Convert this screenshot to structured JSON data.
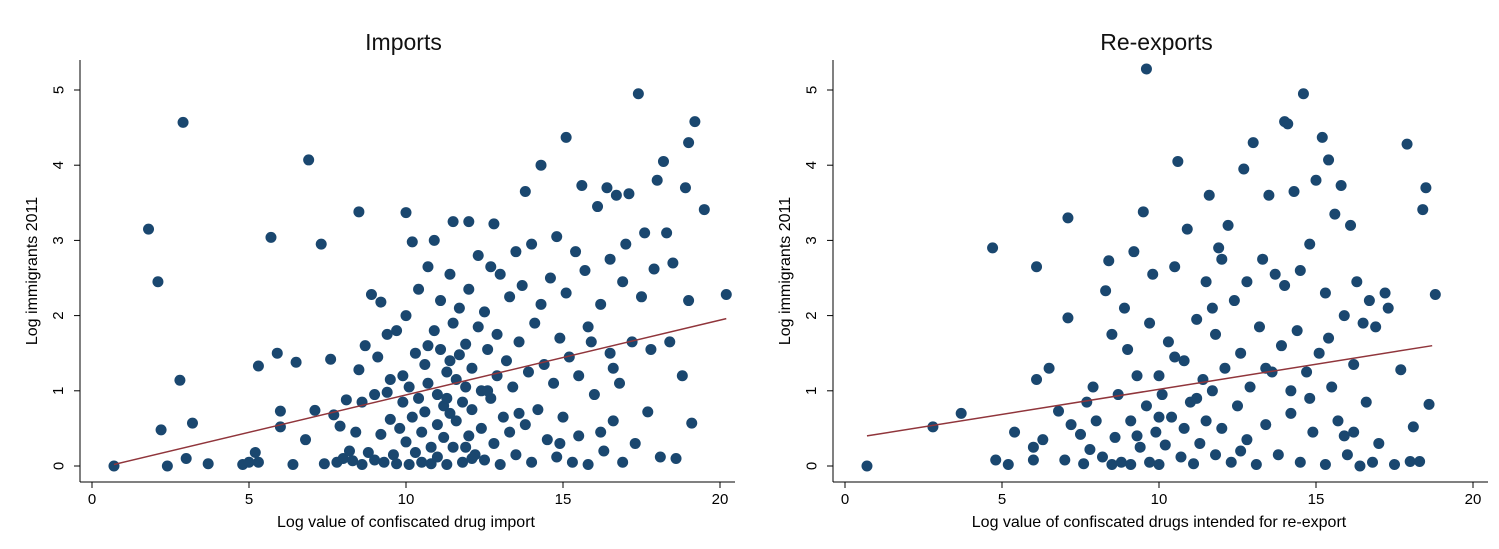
{
  "chart_data": [
    {
      "type": "scatter",
      "title": "Imports",
      "xlabel": "Log value of confiscated drug import",
      "ylabel": "Log immigrants 2011",
      "xlim": [
        0,
        20.5
      ],
      "ylim": [
        0,
        5.5
      ],
      "xticks": [
        0,
        5,
        10,
        15,
        20
      ],
      "yticks": [
        0,
        1,
        2,
        3,
        4,
        5
      ],
      "grid": false,
      "marker_color": "#1a476f",
      "fit_color": "#90353b",
      "fit_line": {
        "x": [
          0.7,
          20.2
        ],
        "y": [
          0.02,
          1.96
        ]
      },
      "points": [
        [
          0.7,
          0.0
        ],
        [
          1.8,
          3.15
        ],
        [
          2.1,
          2.45
        ],
        [
          2.2,
          0.48
        ],
        [
          2.4,
          0.0
        ],
        [
          2.8,
          1.14
        ],
        [
          2.9,
          4.57
        ],
        [
          3.0,
          0.1
        ],
        [
          3.2,
          0.57
        ],
        [
          3.7,
          0.03
        ],
        [
          4.8,
          0.02
        ],
        [
          5.0,
          0.05
        ],
        [
          5.2,
          0.18
        ],
        [
          5.3,
          1.33
        ],
        [
          5.3,
          0.05
        ],
        [
          5.7,
          3.04
        ],
        [
          5.9,
          1.5
        ],
        [
          6.0,
          0.73
        ],
        [
          6.0,
          0.52
        ],
        [
          6.4,
          0.02
        ],
        [
          6.5,
          1.38
        ],
        [
          6.8,
          0.35
        ],
        [
          6.9,
          4.07
        ],
        [
          7.1,
          0.74
        ],
        [
          7.3,
          2.95
        ],
        [
          7.4,
          0.03
        ],
        [
          7.6,
          1.42
        ],
        [
          7.7,
          0.68
        ],
        [
          7.8,
          0.05
        ],
        [
          7.9,
          0.53
        ],
        [
          8.0,
          0.1
        ],
        [
          8.1,
          0.88
        ],
        [
          8.2,
          0.2
        ],
        [
          8.3,
          0.07
        ],
        [
          8.4,
          0.45
        ],
        [
          8.5,
          1.28
        ],
        [
          8.5,
          3.38
        ],
        [
          8.6,
          0.85
        ],
        [
          8.6,
          0.02
        ],
        [
          8.7,
          1.6
        ],
        [
          8.8,
          0.18
        ],
        [
          8.9,
          2.28
        ],
        [
          9.0,
          0.95
        ],
        [
          9.0,
          0.08
        ],
        [
          9.1,
          1.45
        ],
        [
          9.2,
          0.42
        ],
        [
          9.2,
          2.18
        ],
        [
          9.3,
          0.05
        ],
        [
          9.4,
          0.98
        ],
        [
          9.5,
          1.15
        ],
        [
          9.5,
          0.62
        ],
        [
          9.6,
          0.15
        ],
        [
          9.7,
          1.8
        ],
        [
          9.7,
          0.03
        ],
        [
          9.8,
          0.5
        ],
        [
          9.9,
          1.2
        ],
        [
          9.9,
          0.85
        ],
        [
          10.0,
          3.37
        ],
        [
          10.0,
          2.0
        ],
        [
          10.0,
          0.32
        ],
        [
          10.1,
          1.05
        ],
        [
          10.1,
          0.02
        ],
        [
          10.2,
          2.98
        ],
        [
          10.2,
          0.65
        ],
        [
          10.3,
          1.5
        ],
        [
          10.3,
          0.18
        ],
        [
          10.4,
          2.35
        ],
        [
          10.4,
          0.9
        ],
        [
          10.5,
          0.45
        ],
        [
          10.5,
          0.05
        ],
        [
          10.6,
          1.35
        ],
        [
          10.6,
          0.72
        ],
        [
          10.7,
          2.65
        ],
        [
          10.7,
          1.1
        ],
        [
          10.8,
          0.25
        ],
        [
          10.8,
          0.03
        ],
        [
          10.9,
          3.0
        ],
        [
          10.9,
          1.8
        ],
        [
          11.0,
          0.95
        ],
        [
          11.0,
          0.55
        ],
        [
          11.0,
          0.12
        ],
        [
          11.1,
          2.2
        ],
        [
          11.1,
          1.55
        ],
        [
          11.2,
          0.8
        ],
        [
          11.2,
          0.38
        ],
        [
          11.3,
          1.25
        ],
        [
          11.3,
          0.02
        ],
        [
          11.4,
          2.55
        ],
        [
          11.4,
          1.4
        ],
        [
          11.4,
          0.7
        ],
        [
          11.5,
          3.25
        ],
        [
          11.5,
          1.9
        ],
        [
          11.5,
          0.25
        ],
        [
          11.6,
          1.15
        ],
        [
          11.6,
          0.6
        ],
        [
          11.7,
          2.1
        ],
        [
          11.7,
          1.48
        ],
        [
          11.8,
          0.85
        ],
        [
          11.8,
          0.05
        ],
        [
          11.9,
          1.62
        ],
        [
          11.9,
          1.05
        ],
        [
          12.0,
          3.25
        ],
        [
          12.0,
          2.35
        ],
        [
          12.0,
          0.4
        ],
        [
          12.1,
          1.3
        ],
        [
          12.1,
          0.75
        ],
        [
          12.2,
          0.15
        ],
        [
          12.3,
          2.8
        ],
        [
          12.3,
          1.85
        ],
        [
          12.4,
          1.0
        ],
        [
          12.4,
          0.5
        ],
        [
          12.5,
          2.05
        ],
        [
          12.5,
          0.08
        ],
        [
          12.6,
          1.55
        ],
        [
          12.7,
          2.65
        ],
        [
          12.7,
          0.9
        ],
        [
          12.8,
          3.22
        ],
        [
          12.8,
          0.3
        ],
        [
          12.9,
          1.75
        ],
        [
          12.9,
          1.2
        ],
        [
          13.0,
          2.55
        ],
        [
          13.0,
          0.02
        ],
        [
          13.1,
          0.65
        ],
        [
          13.2,
          1.4
        ],
        [
          13.3,
          2.25
        ],
        [
          13.3,
          0.45
        ],
        [
          13.4,
          1.05
        ],
        [
          13.5,
          2.85
        ],
        [
          13.5,
          0.15
        ],
        [
          13.6,
          1.65
        ],
        [
          13.7,
          2.4
        ],
        [
          13.8,
          0.55
        ],
        [
          13.8,
          3.65
        ],
        [
          13.9,
          1.25
        ],
        [
          14.0,
          2.95
        ],
        [
          14.0,
          0.05
        ],
        [
          14.1,
          1.9
        ],
        [
          14.2,
          0.75
        ],
        [
          14.3,
          4.0
        ],
        [
          14.3,
          2.15
        ],
        [
          14.4,
          1.35
        ],
        [
          14.5,
          0.35
        ],
        [
          14.6,
          2.5
        ],
        [
          14.7,
          1.1
        ],
        [
          14.8,
          3.05
        ],
        [
          14.8,
          0.12
        ],
        [
          14.9,
          1.7
        ],
        [
          15.0,
          0.65
        ],
        [
          15.1,
          4.37
        ],
        [
          15.1,
          2.3
        ],
        [
          15.2,
          1.45
        ],
        [
          15.3,
          0.05
        ],
        [
          15.4,
          2.85
        ],
        [
          15.5,
          1.2
        ],
        [
          15.5,
          0.4
        ],
        [
          15.6,
          3.73
        ],
        [
          15.7,
          2.6
        ],
        [
          15.8,
          1.85
        ],
        [
          15.8,
          0.02
        ],
        [
          16.0,
          0.95
        ],
        [
          16.1,
          3.45
        ],
        [
          16.2,
          2.15
        ],
        [
          16.3,
          0.2
        ],
        [
          16.4,
          3.7
        ],
        [
          16.5,
          1.5
        ],
        [
          16.5,
          2.75
        ],
        [
          16.6,
          0.6
        ],
        [
          16.7,
          3.6
        ],
        [
          16.8,
          1.1
        ],
        [
          16.9,
          2.45
        ],
        [
          16.9,
          0.05
        ],
        [
          17.0,
          2.95
        ],
        [
          17.1,
          3.62
        ],
        [
          17.2,
          1.65
        ],
        [
          17.3,
          0.3
        ],
        [
          17.4,
          4.95
        ],
        [
          17.5,
          2.25
        ],
        [
          17.6,
          3.1
        ],
        [
          17.7,
          0.72
        ],
        [
          17.8,
          1.55
        ],
        [
          17.9,
          2.62
        ],
        [
          18.0,
          3.8
        ],
        [
          18.1,
          0.12
        ],
        [
          18.2,
          4.05
        ],
        [
          18.3,
          3.1
        ],
        [
          18.4,
          1.65
        ],
        [
          18.5,
          2.7
        ],
        [
          18.6,
          0.1
        ],
        [
          18.8,
          1.2
        ],
        [
          18.9,
          3.7
        ],
        [
          19.0,
          2.2
        ],
        [
          19.0,
          4.3
        ],
        [
          19.1,
          0.57
        ],
        [
          19.2,
          4.58
        ],
        [
          19.5,
          3.41
        ],
        [
          20.2,
          2.28
        ],
        [
          16.2,
          0.45
        ],
        [
          15.9,
          1.65
        ],
        [
          16.6,
          1.3
        ],
        [
          14.9,
          0.3
        ],
        [
          12.1,
          0.1
        ],
        [
          11.3,
          0.9
        ],
        [
          10.7,
          1.6
        ],
        [
          9.4,
          1.75
        ],
        [
          13.6,
          0.7
        ],
        [
          12.6,
          1.0
        ],
        [
          11.9,
          0.25
        ]
      ]
    },
    {
      "type": "scatter",
      "title": "Re-exports",
      "xlabel": "Log value of confiscated drugs intended for re-export",
      "ylabel": "Log immigrants 2011",
      "xlim": [
        0,
        20.5
      ],
      "ylim": [
        0,
        5.5
      ],
      "xticks": [
        0,
        5,
        10,
        15,
        20
      ],
      "yticks": [
        0,
        1,
        2,
        3,
        4,
        5
      ],
      "grid": false,
      "marker_color": "#1a476f",
      "fit_color": "#90353b",
      "fit_line": {
        "x": [
          0.7,
          18.7
        ],
        "y": [
          0.4,
          1.6
        ]
      },
      "points": [
        [
          0.7,
          0.0
        ],
        [
          2.8,
          0.52
        ],
        [
          3.7,
          0.7
        ],
        [
          4.7,
          2.9
        ],
        [
          4.8,
          0.08
        ],
        [
          5.2,
          0.02
        ],
        [
          5.4,
          0.45
        ],
        [
          6.0,
          0.08
        ],
        [
          6.0,
          0.25
        ],
        [
          6.1,
          2.65
        ],
        [
          6.1,
          1.15
        ],
        [
          6.3,
          0.35
        ],
        [
          6.5,
          1.3
        ],
        [
          6.8,
          0.73
        ],
        [
          7.0,
          0.08
        ],
        [
          7.1,
          3.3
        ],
        [
          7.1,
          1.97
        ],
        [
          7.2,
          0.55
        ],
        [
          7.5,
          0.42
        ],
        [
          7.6,
          0.03
        ],
        [
          7.7,
          0.85
        ],
        [
          7.8,
          0.22
        ],
        [
          7.9,
          1.05
        ],
        [
          8.0,
          0.6
        ],
        [
          8.2,
          0.12
        ],
        [
          8.3,
          2.33
        ],
        [
          8.4,
          2.73
        ],
        [
          8.5,
          0.02
        ],
        [
          8.5,
          1.75
        ],
        [
          8.6,
          0.38
        ],
        [
          8.7,
          0.95
        ],
        [
          8.8,
          0.05
        ],
        [
          8.9,
          2.1
        ],
        [
          9.0,
          1.55
        ],
        [
          9.1,
          0.6
        ],
        [
          9.1,
          0.02
        ],
        [
          9.2,
          2.85
        ],
        [
          9.3,
          1.2
        ],
        [
          9.4,
          0.25
        ],
        [
          9.5,
          3.38
        ],
        [
          9.6,
          0.8
        ],
        [
          9.6,
          5.28
        ],
        [
          9.7,
          1.9
        ],
        [
          9.7,
          0.05
        ],
        [
          9.8,
          2.55
        ],
        [
          9.9,
          0.45
        ],
        [
          10.0,
          1.2
        ],
        [
          10.0,
          0.02
        ],
        [
          10.1,
          0.95
        ],
        [
          10.2,
          0.28
        ],
        [
          10.3,
          1.65
        ],
        [
          10.4,
          0.65
        ],
        [
          10.5,
          2.65
        ],
        [
          10.6,
          4.05
        ],
        [
          10.7,
          0.12
        ],
        [
          10.8,
          1.4
        ],
        [
          10.8,
          0.5
        ],
        [
          10.9,
          3.15
        ],
        [
          11.0,
          0.85
        ],
        [
          11.1,
          0.03
        ],
        [
          11.2,
          1.95
        ],
        [
          11.3,
          0.3
        ],
        [
          11.4,
          1.15
        ],
        [
          11.5,
          2.45
        ],
        [
          11.5,
          0.6
        ],
        [
          11.6,
          3.6
        ],
        [
          11.7,
          1.0
        ],
        [
          11.8,
          0.15
        ],
        [
          11.8,
          1.75
        ],
        [
          11.9,
          2.9
        ],
        [
          12.0,
          0.5
        ],
        [
          12.1,
          1.3
        ],
        [
          12.2,
          3.2
        ],
        [
          12.3,
          0.05
        ],
        [
          12.4,
          2.2
        ],
        [
          12.5,
          0.8
        ],
        [
          12.6,
          1.5
        ],
        [
          12.7,
          3.95
        ],
        [
          12.8,
          0.35
        ],
        [
          12.8,
          2.45
        ],
        [
          12.9,
          1.05
        ],
        [
          13.0,
          4.3
        ],
        [
          13.1,
          0.02
        ],
        [
          13.2,
          1.85
        ],
        [
          13.3,
          2.75
        ],
        [
          13.4,
          0.55
        ],
        [
          13.5,
          3.6
        ],
        [
          13.6,
          1.25
        ],
        [
          13.7,
          2.55
        ],
        [
          13.8,
          0.15
        ],
        [
          13.9,
          1.6
        ],
        [
          14.0,
          4.58
        ],
        [
          14.0,
          2.4
        ],
        [
          14.1,
          4.55
        ],
        [
          14.2,
          0.7
        ],
        [
          14.3,
          3.65
        ],
        [
          14.4,
          1.8
        ],
        [
          14.5,
          2.6
        ],
        [
          14.5,
          0.05
        ],
        [
          14.6,
          4.95
        ],
        [
          14.7,
          1.25
        ],
        [
          14.8,
          2.95
        ],
        [
          14.9,
          0.45
        ],
        [
          15.0,
          3.8
        ],
        [
          15.1,
          1.5
        ],
        [
          15.2,
          4.37
        ],
        [
          15.3,
          0.02
        ],
        [
          15.3,
          2.3
        ],
        [
          15.4,
          4.07
        ],
        [
          15.5,
          1.05
        ],
        [
          15.6,
          3.35
        ],
        [
          15.7,
          0.6
        ],
        [
          15.8,
          3.73
        ],
        [
          15.9,
          2.0
        ],
        [
          16.0,
          0.15
        ],
        [
          16.1,
          3.2
        ],
        [
          16.2,
          1.35
        ],
        [
          16.3,
          2.45
        ],
        [
          16.4,
          0.0
        ],
        [
          16.5,
          1.9
        ],
        [
          16.6,
          0.85
        ],
        [
          16.7,
          2.2
        ],
        [
          16.8,
          0.05
        ],
        [
          16.9,
          1.85
        ],
        [
          17.0,
          0.3
        ],
        [
          17.2,
          2.3
        ],
        [
          17.3,
          2.1
        ],
        [
          17.5,
          0.02
        ],
        [
          17.7,
          1.28
        ],
        [
          17.9,
          4.28
        ],
        [
          18.0,
          0.06
        ],
        [
          18.1,
          0.52
        ],
        [
          18.3,
          0.06
        ],
        [
          18.4,
          3.41
        ],
        [
          18.5,
          3.7
        ],
        [
          18.6,
          0.82
        ],
        [
          18.8,
          2.28
        ],
        [
          15.9,
          0.4
        ],
        [
          14.2,
          1.0
        ],
        [
          12.6,
          0.2
        ],
        [
          11.2,
          0.9
        ],
        [
          10.5,
          1.45
        ],
        [
          9.3,
          0.4
        ],
        [
          13.4,
          1.3
        ],
        [
          12.0,
          2.75
        ],
        [
          14.8,
          0.9
        ],
        [
          15.4,
          1.7
        ],
        [
          16.2,
          0.45
        ],
        [
          11.7,
          2.1
        ],
        [
          10.0,
          0.65
        ]
      ]
    }
  ]
}
